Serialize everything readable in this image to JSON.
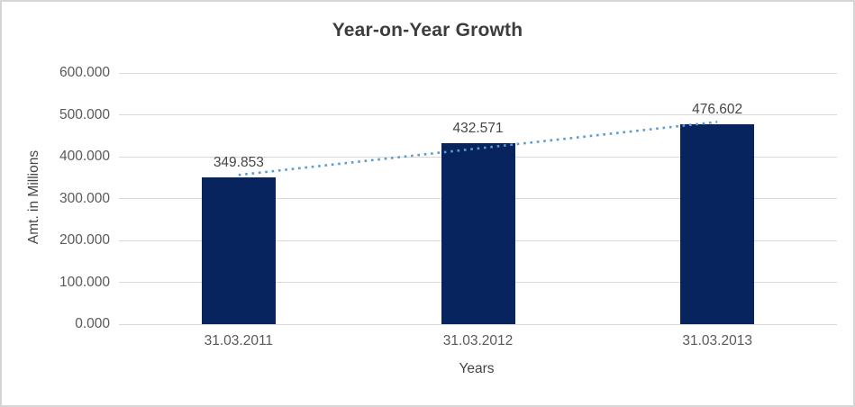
{
  "window": {
    "background_color": "#ffffff",
    "border_color": "#d5d5d5"
  },
  "chart_data": {
    "type": "bar",
    "title": "Year-on-Year Growth",
    "xlabel": "Years",
    "ylabel": "Amt. in Millions",
    "categories": [
      "31.03.2011",
      "31.03.2012",
      "31.03.2013"
    ],
    "values": [
      349.853,
      432.571,
      476.602
    ],
    "value_labels": [
      "349.853",
      "432.571",
      "476.602"
    ],
    "ylim": [
      0,
      600
    ],
    "ytick_step": 100,
    "ytick_labels": [
      "0.000",
      "100.000",
      "200.000",
      "300.000",
      "400.000",
      "500.000",
      "600.000"
    ],
    "grid": true,
    "legend": "none",
    "bar_color": "#08245f",
    "grid_color": "#d9d9d9",
    "tick_label_color": "#595959",
    "data_label_color": "#464646",
    "trendline": {
      "type": "linear",
      "style": "dotted",
      "color": "#5b9bd5"
    }
  }
}
